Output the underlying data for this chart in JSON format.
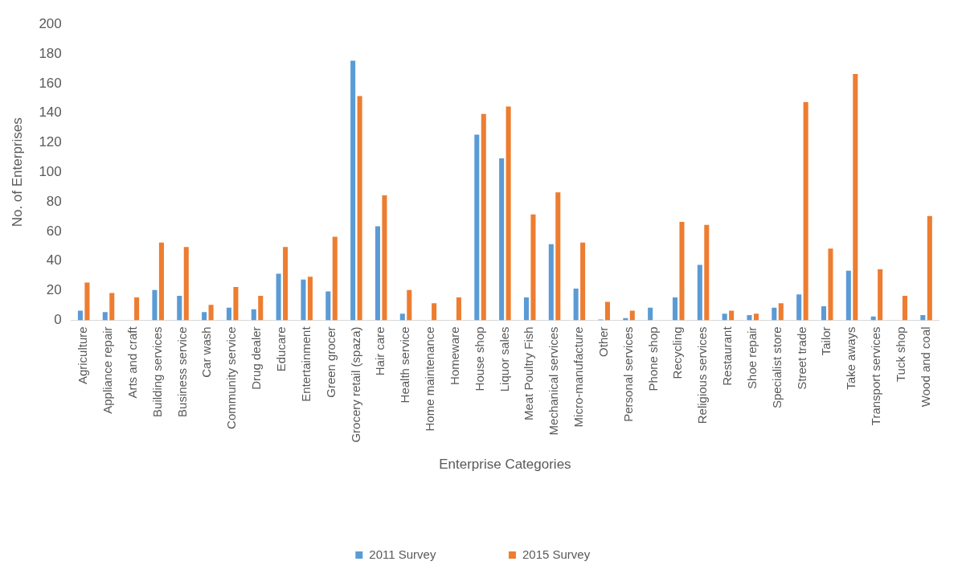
{
  "chart_data": {
    "type": "bar",
    "xlabel": "Enterprise Categories",
    "ylabel": "No. of Enterprises",
    "categories": [
      "Agriculture",
      "Appliance repair",
      "Arts and craft",
      "Building services",
      "Business service",
      "Car wash",
      "Community service",
      "Drug dealer",
      "Educare",
      "Entertainment",
      "Green grocer",
      "Grocery retail (spaza)",
      "Hair care",
      "Health service",
      "Home maintenance",
      "Homeware",
      "House shop",
      "Liquor sales",
      "Meat Poultry Fish",
      "Mechanical services",
      "Micro-manufacture",
      "Other",
      "Personal services",
      "Phone shop",
      "Recycling",
      "Religious services",
      "Restaurant",
      "Shoe repair",
      "Specialist store",
      "Street trade",
      "Tailor",
      "Take aways",
      "Transport services",
      "Tuck shop",
      "Wood and coal"
    ],
    "series": [
      {
        "name": "2011 Survey",
        "color": "#5b9bd5",
        "values": [
          7,
          6,
          null,
          21,
          17,
          6,
          9,
          8,
          32,
          28,
          20,
          176,
          64,
          5,
          null,
          null,
          126,
          110,
          16,
          52,
          22,
          1,
          2,
          9,
          16,
          38,
          5,
          4,
          9,
          18,
          10,
          34,
          3,
          null,
          4
        ]
      },
      {
        "name": "2015 Survey",
        "color": "#ed7d31",
        "values": [
          26,
          19,
          16,
          53,
          50,
          11,
          23,
          17,
          50,
          30,
          57,
          152,
          85,
          21,
          12,
          16,
          140,
          145,
          72,
          87,
          53,
          13,
          7,
          null,
          67,
          65,
          7,
          5,
          12,
          148,
          49,
          167,
          35,
          17,
          71
        ]
      }
    ],
    "ylim": [
      0,
      200
    ],
    "yticks": [
      0,
      20,
      40,
      60,
      80,
      100,
      120,
      140,
      160,
      180,
      200
    ],
    "grid": false,
    "legend": "bottom"
  }
}
